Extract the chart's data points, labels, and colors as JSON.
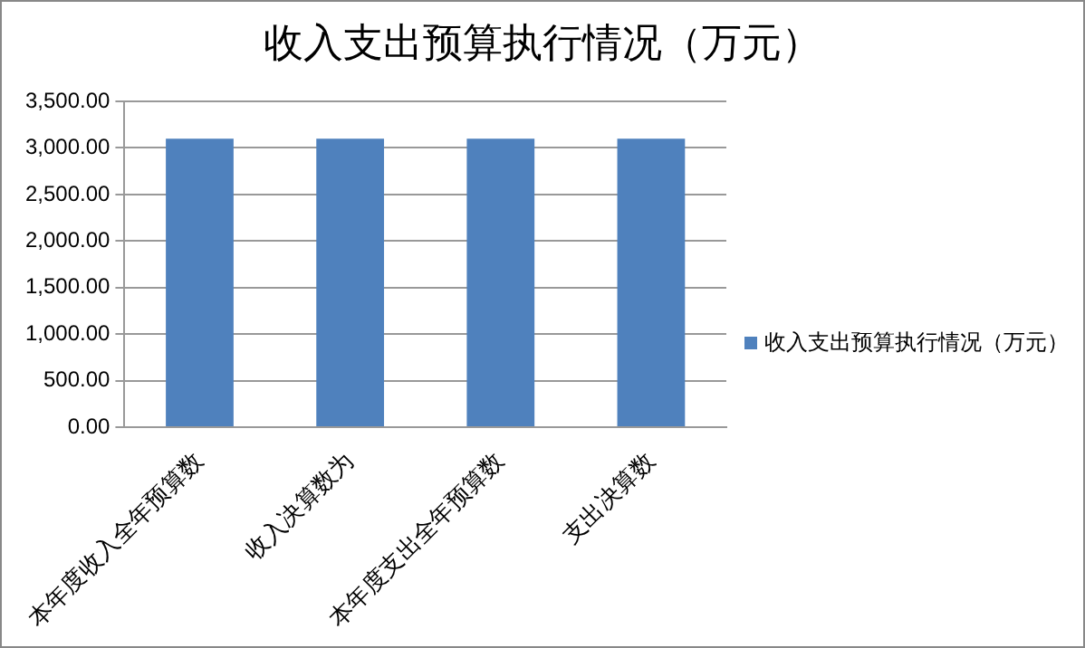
{
  "chart_data": {
    "type": "bar",
    "title": "收入支出预算执行情况（万元）",
    "categories": [
      "本年度收入全年预算数",
      "收入决算数为",
      "本年度支出全年预算数",
      "支出决算数"
    ],
    "series": [
      {
        "name": "收入支出预算执行情况（万元）",
        "color": "#4f81bd",
        "values": [
          3100,
          3100,
          3100,
          3100
        ]
      }
    ],
    "ylim": [
      0,
      3500
    ],
    "yticks": [
      {
        "value": 0,
        "label": "0.00"
      },
      {
        "value": 500,
        "label": "500.00"
      },
      {
        "value": 1000,
        "label": "1,000.00"
      },
      {
        "value": 1500,
        "label": "1,500.00"
      },
      {
        "value": 2000,
        "label": "2,000.00"
      },
      {
        "value": 2500,
        "label": "2,500.00"
      },
      {
        "value": 3000,
        "label": "3,000.00"
      },
      {
        "value": 3500,
        "label": "3,500.00"
      }
    ],
    "grid": "y",
    "legend": "right"
  }
}
